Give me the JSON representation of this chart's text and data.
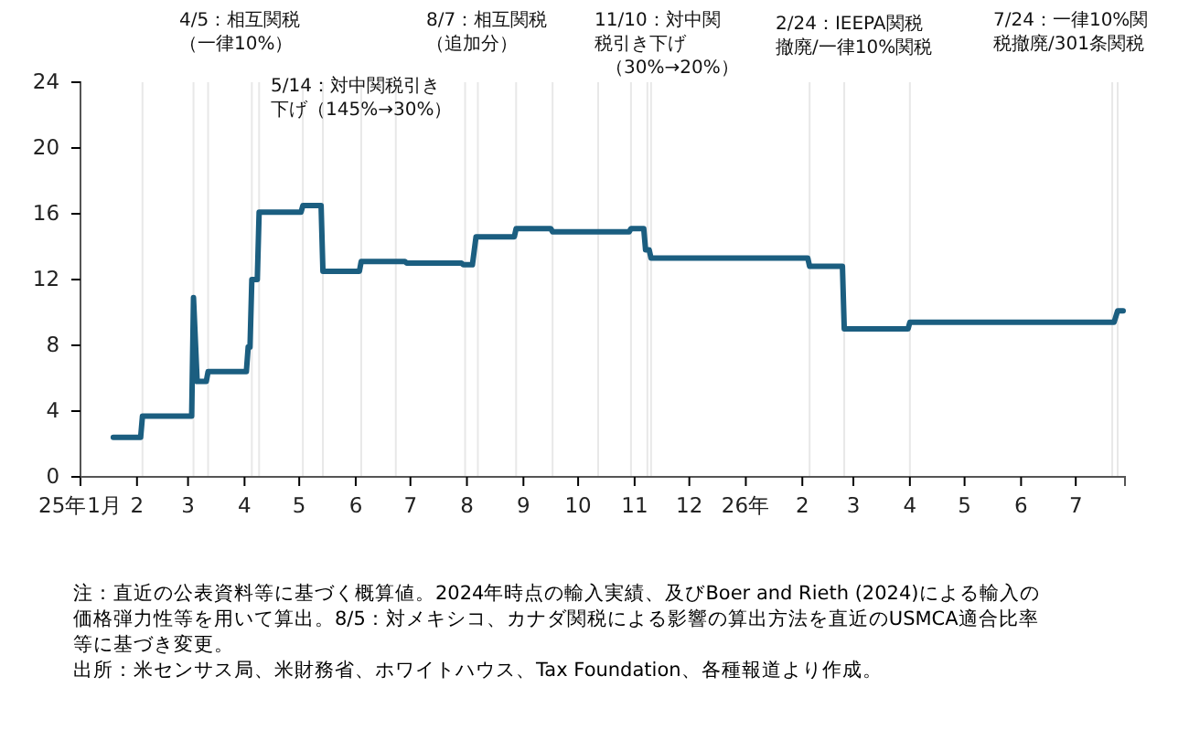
{
  "chart_data": {
    "type": "line",
    "x": [
      "2025-01-19",
      "2025-02-03",
      "2025-02-04",
      "2025-03-03",
      "2025-03-04",
      "2025-03-06",
      "2025-03-11",
      "2025-03-12",
      "2025-04-02",
      "2025-04-03",
      "2025-04-04",
      "2025-04-05",
      "2025-04-08",
      "2025-04-09",
      "2025-05-02",
      "2025-05-03",
      "2025-05-13",
      "2025-05-14",
      "2025-06-03",
      "2025-06-04",
      "2025-06-28",
      "2025-06-29",
      "2025-07-29",
      "2025-07-30",
      "2025-08-04",
      "2025-08-06",
      "2025-08-27",
      "2025-08-28",
      "2025-09-16",
      "2025-09-17",
      "2025-10-29",
      "2025-10-30",
      "2025-11-06",
      "2025-11-07",
      "2025-11-09",
      "2025-11-10",
      "2026-02-04",
      "2026-02-05",
      "2026-02-23",
      "2026-02-24",
      "2026-03-31",
      "2026-04-01",
      "2026-07-22",
      "2026-07-24",
      "2026-07-27"
    ],
    "series": [
      {
        "color": "#1b5e80",
        "values": [
          2.4,
          2.4,
          3.7,
          3.7,
          10.9,
          5.8,
          5.8,
          6.4,
          6.4,
          7.9,
          7.9,
          12.0,
          12.0,
          16.1,
          16.1,
          16.5,
          16.5,
          12.5,
          12.5,
          13.1,
          13.1,
          13.0,
          13.0,
          12.9,
          12.9,
          14.6,
          14.6,
          15.1,
          15.1,
          14.9,
          14.9,
          15.1,
          15.1,
          13.8,
          13.8,
          13.3,
          13.3,
          12.8,
          12.8,
          9.0,
          9.0,
          9.4,
          9.4,
          10.1,
          10.1
        ]
      }
    ],
    "xlim": [
      "2025-01-01",
      "2026-07-28"
    ],
    "xticks": [
      {
        "value": "2025-01-01",
        "label": "25年1月"
      },
      {
        "value": "2025-02-01",
        "label": "2"
      },
      {
        "value": "2025-03-01",
        "label": "3"
      },
      {
        "value": "2025-04-01",
        "label": "4"
      },
      {
        "value": "2025-05-01",
        "label": "5"
      },
      {
        "value": "2025-06-01",
        "label": "6"
      },
      {
        "value": "2025-07-01",
        "label": "7"
      },
      {
        "value": "2025-08-01",
        "label": "8"
      },
      {
        "value": "2025-09-01",
        "label": "9"
      },
      {
        "value": "2025-10-01",
        "label": "10"
      },
      {
        "value": "2025-11-01",
        "label": "11"
      },
      {
        "value": "2025-12-01",
        "label": "12"
      },
      {
        "value": "2026-01-01",
        "label": "26年"
      },
      {
        "value": "2026-02-01",
        "label": "2"
      },
      {
        "value": "2026-03-01",
        "label": "3"
      },
      {
        "value": "2026-04-01",
        "label": "4"
      },
      {
        "value": "2026-05-01",
        "label": "5"
      },
      {
        "value": "2026-06-01",
        "label": "6"
      },
      {
        "value": "2026-07-01",
        "label": "7"
      }
    ],
    "ylim": [
      0,
      24
    ],
    "yticks": [
      0,
      4,
      8,
      12,
      16,
      20,
      24
    ],
    "grid": false,
    "marker": "none",
    "line_style": "solid",
    "ref_lines": [
      {
        "axis": "x",
        "value": "2025-02-04",
        "color": "#e8e8e8"
      },
      {
        "axis": "x",
        "value": "2025-03-04",
        "color": "#e8e8e8"
      },
      {
        "axis": "x",
        "value": "2025-03-12",
        "color": "#e8e8e8"
      },
      {
        "axis": "x",
        "value": "2025-04-05",
        "color": "#e8e8e8"
      },
      {
        "axis": "x",
        "value": "2025-04-09",
        "color": "#e8e8e8"
      },
      {
        "axis": "x",
        "value": "2025-05-03",
        "color": "#e8e8e8"
      },
      {
        "axis": "x",
        "value": "2025-05-14",
        "color": "#e8e8e8"
      },
      {
        "axis": "x",
        "value": "2025-06-04",
        "color": "#e8e8e8"
      },
      {
        "axis": "x",
        "value": "2025-06-23",
        "color": "#e8e8e8"
      },
      {
        "axis": "x",
        "value": "2025-07-31",
        "color": "#e8e8e8"
      },
      {
        "axis": "x",
        "value": "2025-08-07",
        "color": "#e8e8e8"
      },
      {
        "axis": "x",
        "value": "2025-08-28",
        "color": "#e8e8e8"
      },
      {
        "axis": "x",
        "value": "2025-09-17",
        "color": "#e8e8e8"
      },
      {
        "axis": "x",
        "value": "2025-10-12",
        "color": "#e8e8e8"
      },
      {
        "axis": "x",
        "value": "2025-10-30",
        "color": "#e8e8e8"
      },
      {
        "axis": "x",
        "value": "2025-11-08",
        "color": "#e8e8e8"
      },
      {
        "axis": "x",
        "value": "2025-11-10",
        "color": "#e8e8e8"
      },
      {
        "axis": "x",
        "value": "2026-02-05",
        "color": "#e8e8e8"
      },
      {
        "axis": "x",
        "value": "2026-02-24",
        "color": "#e8e8e8"
      },
      {
        "axis": "x",
        "value": "2026-04-01",
        "color": "#e8e8e8"
      },
      {
        "axis": "x",
        "value": "2026-07-21",
        "color": "#e8e8e8"
      },
      {
        "axis": "x",
        "value": "2026-07-24",
        "color": "#e8e8e8"
      }
    ],
    "annotations": [
      "4/5：相互関税（一律10%）",
      "5/14：対中関税引き下げ（145%→30%）",
      "8/7：相互関税（追加分）",
      "11/10：対中関税引き下げ（30%→20%）",
      "2/24：IEEPA関税撤廃/一律10%関税",
      "7/24：一律10%関税撤廃/301条関税",
      "注：直近の公表資料等に基づく概算値。2024年時点の輸入実績、及びBoer and Rieth (2024)による輸入の価格弾力性等を用いて算出。8/5：対メキシコ、カナダ関税による影響の算出方法を直近のUSMCA適合比率等に基づき変更。",
      "出所：米センサス局、米財務省、ホワイトハウス、Tax Foundation、各種報道より作成。"
    ]
  }
}
